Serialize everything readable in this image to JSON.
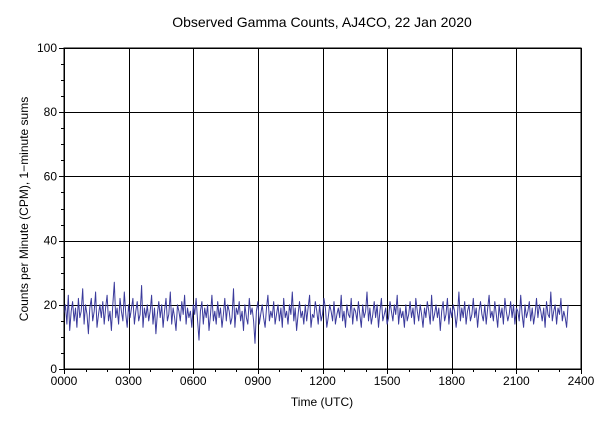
{
  "chart_data": {
    "type": "line",
    "title": "Observed Gamma Counts, AJ4CO, 22 Jan 2020",
    "xlabel": "Time (UTC)",
    "ylabel": "Counts per Minute (CPM), 1−minute sums",
    "xlim": [
      0,
      1440
    ],
    "ylim": [
      0,
      100
    ],
    "x_ticks": [
      {
        "value": 0,
        "label": "0000"
      },
      {
        "value": 180,
        "label": "0300"
      },
      {
        "value": 360,
        "label": "0600"
      },
      {
        "value": 540,
        "label": "0900"
      },
      {
        "value": 720,
        "label": "1200"
      },
      {
        "value": 900,
        "label": "1500"
      },
      {
        "value": 1080,
        "label": "1800"
      },
      {
        "value": 1260,
        "label": "2100"
      },
      {
        "value": 1440,
        "label": "2400"
      }
    ],
    "y_ticks": [
      {
        "value": 0,
        "label": "0"
      },
      {
        "value": 20,
        "label": "20"
      },
      {
        "value": 40,
        "label": "40"
      },
      {
        "value": 60,
        "label": "60"
      },
      {
        "value": 80,
        "label": "80"
      },
      {
        "value": 100,
        "label": "100"
      }
    ],
    "grid": true,
    "series": [
      {
        "color": "#3b3b9c",
        "x_start": 0,
        "x_step": 4,
        "values": [
          17,
          20,
          14,
          23,
          12,
          18,
          21,
          15,
          19,
          13,
          22,
          16,
          18,
          25,
          14,
          20,
          17,
          11,
          19,
          22,
          15,
          18,
          24,
          13,
          17,
          20,
          16,
          21,
          14,
          19,
          23,
          15,
          18,
          12,
          20,
          27,
          16,
          19,
          14,
          22,
          18,
          15,
          24,
          17,
          13,
          20,
          16,
          19,
          22,
          14,
          18,
          21,
          15,
          17,
          26,
          13,
          19,
          16,
          20,
          15,
          18,
          23,
          14,
          19,
          11,
          17,
          21,
          16,
          20,
          13,
          18,
          22,
          15,
          17,
          24,
          14,
          19,
          16,
          12,
          20,
          18,
          15,
          21,
          17,
          23,
          14,
          19,
          16,
          18,
          13,
          20,
          17,
          22,
          15,
          9,
          18,
          21,
          14,
          19,
          16,
          20,
          12,
          17,
          23,
          15,
          18,
          14,
          21,
          16,
          19,
          13,
          17,
          22,
          15,
          20,
          18,
          14,
          16,
          25,
          13,
          19,
          17,
          21,
          15,
          18,
          12,
          20,
          16,
          14,
          22,
          17,
          19,
          15,
          8,
          18,
          21,
          14,
          17,
          20,
          16,
          13,
          19,
          23,
          15,
          18,
          16,
          21,
          14,
          17,
          20,
          15,
          19,
          13,
          22,
          16,
          18,
          14,
          20,
          17,
          24,
          15,
          19,
          12,
          17,
          21,
          16,
          18,
          14,
          20,
          15,
          19,
          23,
          13,
          17,
          16,
          21,
          18,
          14,
          20,
          15,
          17,
          22,
          19,
          13,
          16,
          20,
          18,
          15,
          21,
          14,
          17,
          19,
          16,
          23,
          15,
          18,
          13,
          20,
          17,
          16,
          22,
          14,
          19,
          18,
          15,
          21,
          17,
          13,
          20,
          16,
          18,
          24,
          15,
          19,
          14,
          17,
          21,
          16,
          20,
          13,
          18,
          22,
          15,
          17,
          19,
          14,
          16,
          21,
          18,
          15,
          20,
          17,
          23,
          14,
          19,
          16,
          18,
          13,
          20,
          15,
          17,
          21,
          16,
          19,
          14,
          22,
          18,
          15,
          20,
          17,
          13,
          19,
          16,
          21,
          18,
          14,
          23,
          15,
          17,
          20,
          16,
          19,
          12,
          18,
          21,
          15,
          17,
          22,
          14,
          19,
          16,
          20,
          18,
          13,
          17,
          24,
          15,
          19,
          16,
          21,
          14,
          18,
          20,
          15,
          17,
          22,
          16,
          19,
          13,
          18,
          21,
          17,
          15,
          20,
          14,
          19,
          23,
          16,
          18,
          15,
          21,
          17,
          13,
          20,
          16,
          19,
          14,
          22,
          18,
          15,
          17,
          21,
          16,
          20,
          14,
          19,
          18,
          15,
          23,
          17,
          13,
          20,
          16,
          18,
          21,
          15,
          19,
          14,
          17,
          22,
          16,
          20,
          18,
          15,
          19,
          13,
          21,
          17,
          16,
          24,
          15,
          18,
          20,
          14,
          19,
          17,
          22,
          15,
          18,
          16,
          13,
          20
        ]
      }
    ]
  }
}
